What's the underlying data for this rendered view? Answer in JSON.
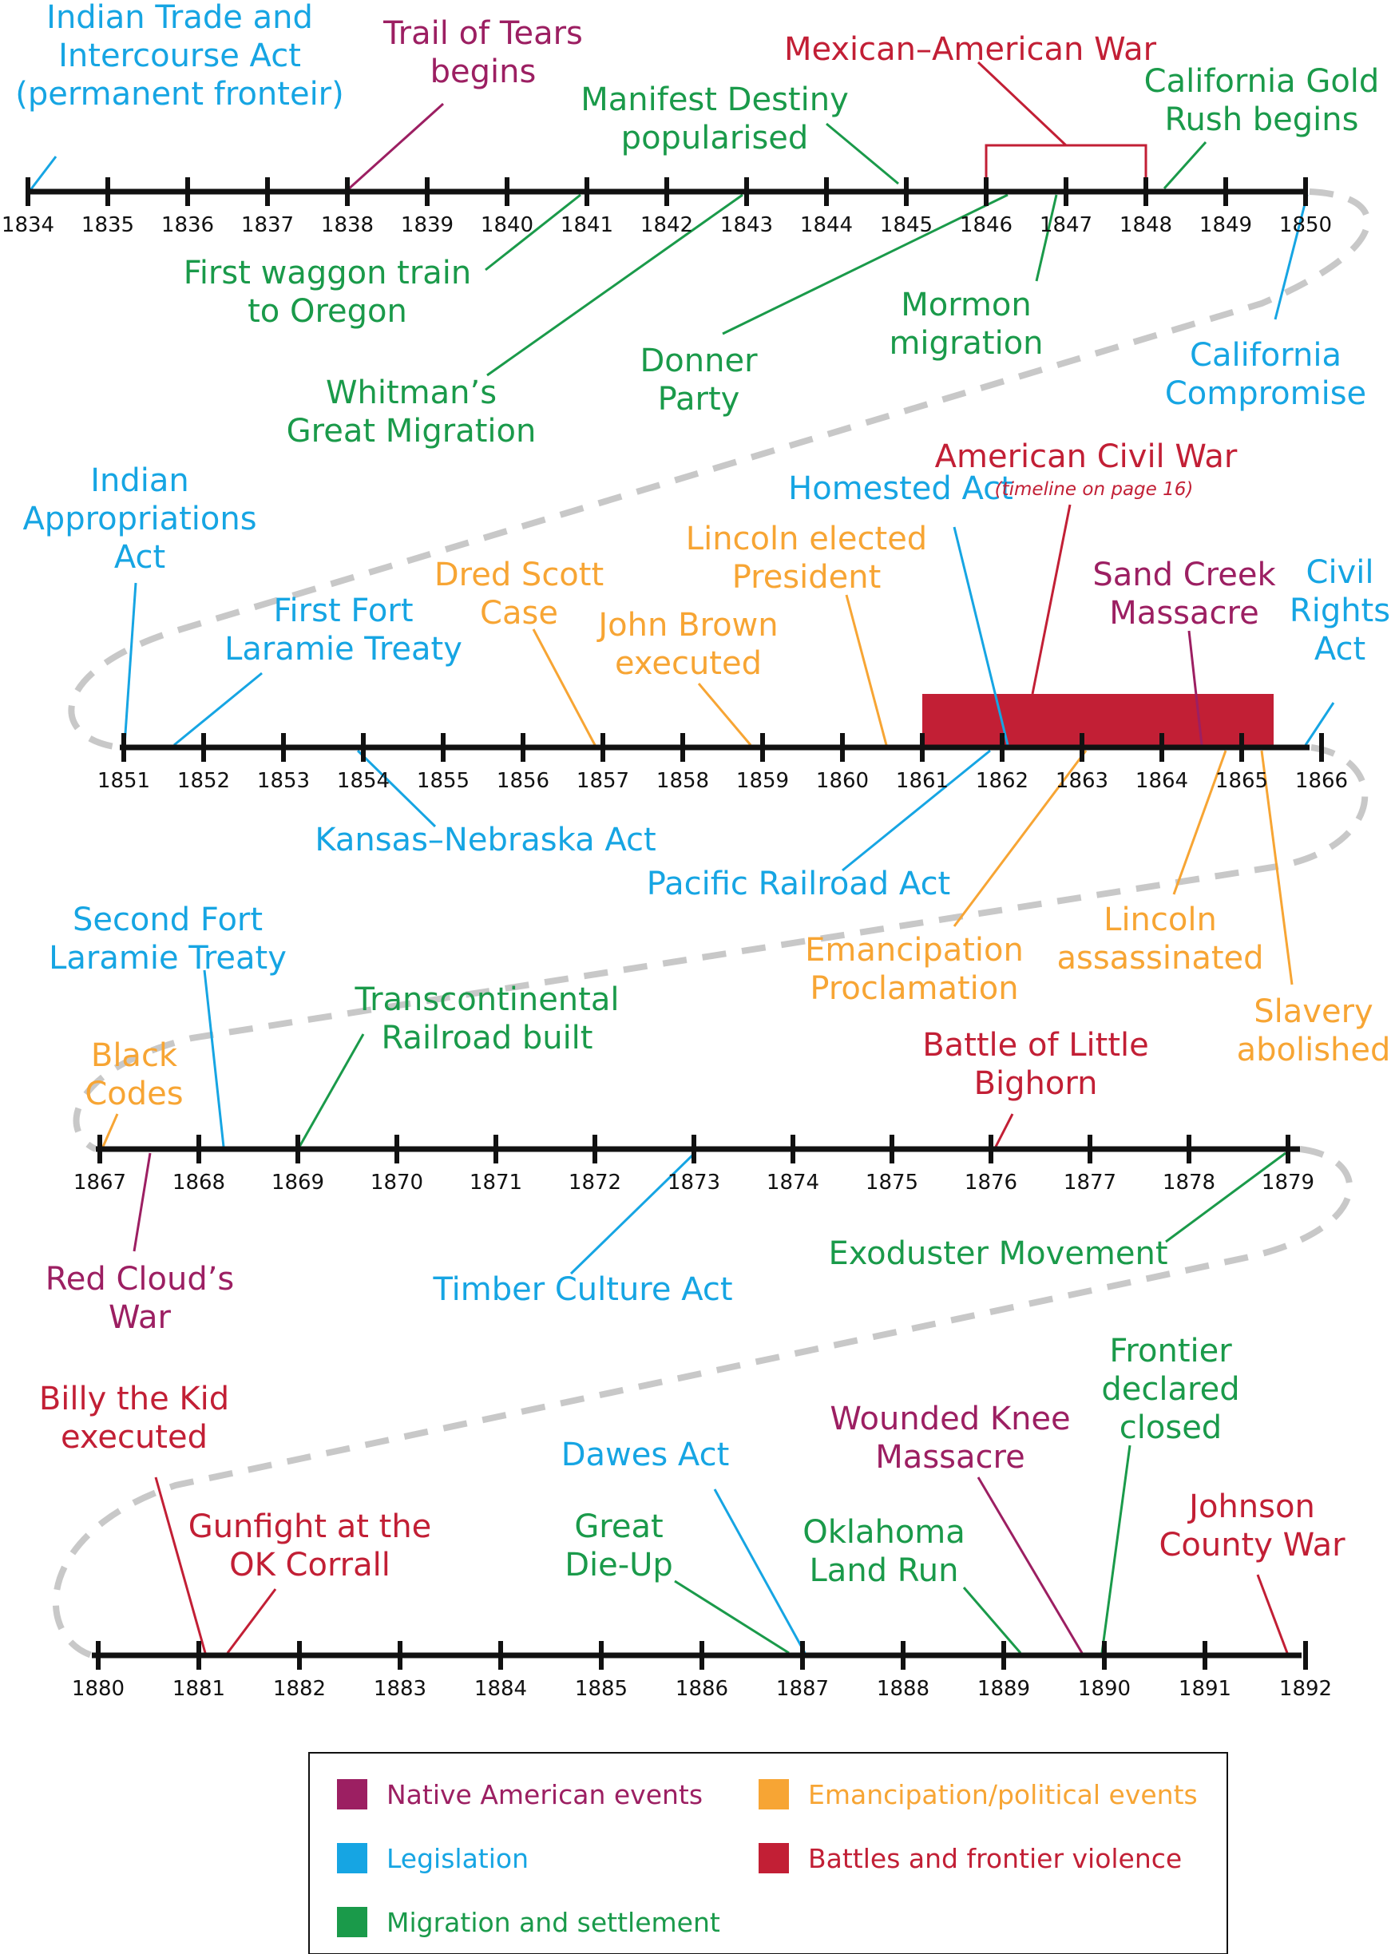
{
  "colors": {
    "native": "#9c1f62",
    "legislation": "#16a5e3",
    "migration": "#1a9a4a",
    "political": "#f7a534",
    "battles": "#c21f35",
    "axis": "#111111",
    "dash": "#c8c8c8"
  },
  "rows": [
    {
      "start": 1834,
      "end": 1850
    },
    {
      "start": 1851,
      "end": 1866
    },
    {
      "start": 1867,
      "end": 1879
    },
    {
      "start": 1880,
      "end": 1892
    }
  ],
  "events": [
    {
      "id": "indian-trade-act",
      "category": "legislation",
      "year": 1834,
      "lines": [
        "Indian Trade and",
        "Intercourse Act",
        "(permanent fronteir)"
      ]
    },
    {
      "id": "trail-of-tears",
      "category": "native",
      "year": 1838,
      "lines": [
        "Trail of Tears",
        "begins"
      ]
    },
    {
      "id": "mexican-american-war",
      "category": "battles",
      "year_start": 1846,
      "year_end": 1848,
      "lines": [
        "Mexican–American War"
      ]
    },
    {
      "id": "manifest-destiny",
      "category": "migration",
      "year": 1845,
      "lines": [
        "Manifest Destiny",
        "popularised"
      ]
    },
    {
      "id": "california-gold-rush",
      "category": "migration",
      "year": 1848,
      "lines": [
        "California Gold",
        "Rush begins"
      ]
    },
    {
      "id": "first-waggon-train",
      "category": "migration",
      "year": 1841,
      "lines": [
        "First waggon train",
        "to Oregon"
      ]
    },
    {
      "id": "whitmans-great-migration",
      "category": "migration",
      "year": 1843,
      "lines": [
        "Whitman’s",
        "Great Migration"
      ]
    },
    {
      "id": "donner-party",
      "category": "migration",
      "year": 1846,
      "lines": [
        "Donner",
        "Party"
      ]
    },
    {
      "id": "mormon-migration",
      "category": "migration",
      "year": 1847,
      "lines": [
        "Mormon",
        "migration"
      ]
    },
    {
      "id": "california-compromise",
      "category": "legislation",
      "year": 1850,
      "lines": [
        "California",
        "Compromise"
      ]
    },
    {
      "id": "indian-appropriations-act",
      "category": "legislation",
      "year": 1851,
      "lines": [
        "Indian",
        "Appropriations",
        "Act"
      ]
    },
    {
      "id": "first-fort-laramie",
      "category": "legislation",
      "year": 1851,
      "lines": [
        "First Fort",
        "Laramie Treaty"
      ]
    },
    {
      "id": "dred-scott",
      "category": "political",
      "year": 1857,
      "lines": [
        "Dred Scott",
        "Case"
      ]
    },
    {
      "id": "john-brown",
      "category": "political",
      "year": 1859,
      "lines": [
        "John Brown",
        "executed"
      ]
    },
    {
      "id": "lincoln-elected",
      "category": "political",
      "year": 1860,
      "lines": [
        "Lincoln elected",
        "President"
      ]
    },
    {
      "id": "homestead-act",
      "category": "legislation",
      "year": 1862,
      "lines": [
        "Homested Act"
      ]
    },
    {
      "id": "american-civil-war",
      "category": "battles",
      "year_start": 1861,
      "year_end": 1865,
      "lines": [
        "American Civil War"
      ],
      "note": "(timeline on page 16)"
    },
    {
      "id": "sand-creek",
      "category": "native",
      "year": 1864,
      "lines": [
        "Sand Creek",
        "Massacre"
      ]
    },
    {
      "id": "civil-rights-act",
      "category": "legislation",
      "year": 1866,
      "lines": [
        "Civil",
        "Rights",
        "Act"
      ]
    },
    {
      "id": "kansas-nebraska",
      "category": "legislation",
      "year": 1854,
      "lines": [
        "Kansas–Nebraska Act"
      ]
    },
    {
      "id": "pacific-railroad",
      "category": "legislation",
      "year": 1862,
      "lines": [
        "Pacific Railroad Act"
      ]
    },
    {
      "id": "emancipation",
      "category": "political",
      "year": 1863,
      "lines": [
        "Emancipation",
        "Proclamation"
      ]
    },
    {
      "id": "lincoln-assassinated",
      "category": "political",
      "year": 1865,
      "lines": [
        "Lincoln",
        "assassinated"
      ]
    },
    {
      "id": "slavery-abolished",
      "category": "political",
      "year": 1865,
      "lines": [
        "Slavery",
        "abolished"
      ]
    },
    {
      "id": "second-fort-laramie",
      "category": "legislation",
      "year": 1868,
      "lines": [
        "Second Fort",
        "Laramie Treaty"
      ]
    },
    {
      "id": "transcontinental",
      "category": "migration",
      "year": 1869,
      "lines": [
        "Transcontinental",
        "Railroad built"
      ]
    },
    {
      "id": "black-codes",
      "category": "political",
      "year": 1867,
      "lines": [
        "Black",
        "Codes"
      ]
    },
    {
      "id": "little-bighorn",
      "category": "battles",
      "year": 1876,
      "lines": [
        "Battle of Little",
        "Bighorn"
      ]
    },
    {
      "id": "red-clouds-war",
      "category": "native",
      "year": 1867,
      "lines": [
        "Red Cloud’s",
        "War"
      ]
    },
    {
      "id": "timber-culture",
      "category": "legislation",
      "year": 1873,
      "lines": [
        "Timber Culture Act"
      ]
    },
    {
      "id": "exoduster",
      "category": "migration",
      "year": 1879,
      "lines": [
        "Exoduster Movement"
      ]
    },
    {
      "id": "billy-the-kid",
      "category": "battles",
      "year": 1881,
      "lines": [
        "Billy the Kid",
        "executed"
      ]
    },
    {
      "id": "ok-corral",
      "category": "battles",
      "year": 1881,
      "lines": [
        "Gunfight at the",
        "OK Corrall"
      ]
    },
    {
      "id": "dawes-act",
      "category": "legislation",
      "year": 1887,
      "lines": [
        "Dawes Act"
      ]
    },
    {
      "id": "great-die-up",
      "category": "migration",
      "year": 1887,
      "lines": [
        "Great",
        "Die-Up"
      ]
    },
    {
      "id": "oklahoma-land-run",
      "category": "migration",
      "year": 1889,
      "lines": [
        "Oklahoma",
        "Land Run"
      ]
    },
    {
      "id": "wounded-knee",
      "category": "native",
      "year": 1890,
      "lines": [
        "Wounded Knee",
        "Massacre"
      ]
    },
    {
      "id": "frontier-closed",
      "category": "migration",
      "year": 1890,
      "lines": [
        "Frontier",
        "declared",
        "closed"
      ]
    },
    {
      "id": "johnson-county-war",
      "category": "battles",
      "year": 1892,
      "lines": [
        "Johnson",
        "County War"
      ]
    }
  ],
  "legend": [
    {
      "category": "native",
      "label": "Native American events"
    },
    {
      "category": "political",
      "label": "Emancipation/political events"
    },
    {
      "category": "legislation",
      "label": "Legislation"
    },
    {
      "category": "battles",
      "label": "Battles and frontier violence"
    },
    {
      "category": "migration",
      "label": "Migration and settlement"
    }
  ]
}
